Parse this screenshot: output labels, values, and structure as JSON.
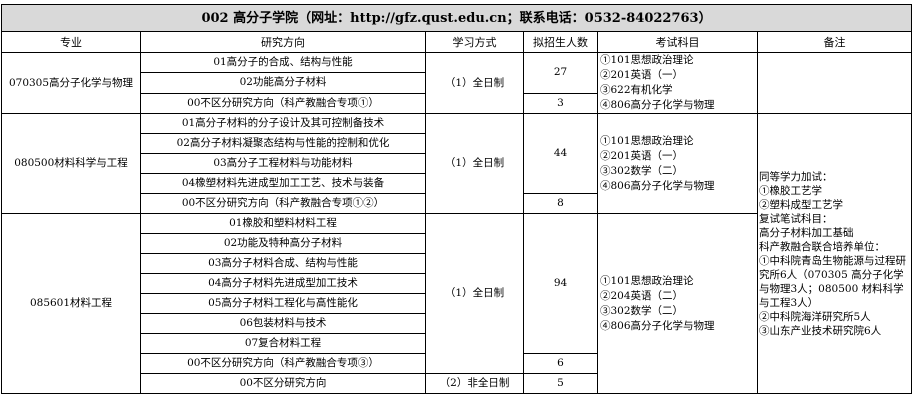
{
  "title": "002 高分子学院（网址：http://gfz.qust.edu.cn；联系电话：0532-84022763）",
  "headers": [
    "专业",
    "研究方向",
    "学习方式",
    "拟招生人数",
    "考试科目",
    "备注"
  ],
  "groups": [
    {
      "major": "070305高分子化学与物理",
      "directions": [
        "01高分子的合成、结构与性能",
        "02功能高分子材料",
        "00不区分研究方向（科产教融合专项①）"
      ],
      "mode": "（1）全日制",
      "counts": [
        "27",
        "3"
      ],
      "exams": [
        "①101思想政治理论",
        "②201英语（一）",
        "③622有机化学",
        "④806高分子化学与物理"
      ]
    },
    {
      "major": "080500材料科学与工程",
      "directions": [
        "01高分子材料的分子设计及其可控制备技术",
        "02高分子材料凝聚态结构与性能的控制和优化",
        "03高分子工程材料与功能材料",
        "04橡塑材料先进成型加工工艺、技术与装备",
        "00不区分研究方向（科产教融合专项①②）"
      ],
      "mode": "（1）全日制",
      "counts": [
        "44",
        "8"
      ],
      "exams": [
        "①101思想政治理论",
        "②201英语（一）",
        "③302数学（二）",
        "④806高分子化学与物理"
      ]
    },
    {
      "major": "085601材料工程",
      "directions": [
        "01橡胶和塑料材料工程",
        "02功能及特种高分子材料",
        "03高分子材料合成、结构与性能",
        "04高分子材料先进成型加工技术",
        "05高分子材料工程化与高性能化",
        "06包装材料与技术",
        "07复合材料工程",
        "00不区分研究方向（科产教融合专项③）",
        "00不区分研究方向"
      ],
      "mode": "（1）全日制",
      "mode2": "（2）非全日制",
      "counts": [
        "94",
        "6",
        "5"
      ],
      "exams": [
        "①101思想政治理论",
        "②204英语（二）",
        "③302数学（二）",
        "④806高分子化学与物理"
      ]
    }
  ],
  "notes": [
    "同等学力加试：",
    "①橡胶工艺学",
    "②塑料成型工艺学",
    "复试笔试科目：",
    "高分子材料加工基础",
    "科产教融合联合培养单位：",
    "①中科院青岛生物能源与过程研究所6人（070305 高分子化学与物理3人；080500 材料科学与工程3人）",
    "②中科院海洋研究所5人",
    "③山东产业技术研究院6人"
  ]
}
